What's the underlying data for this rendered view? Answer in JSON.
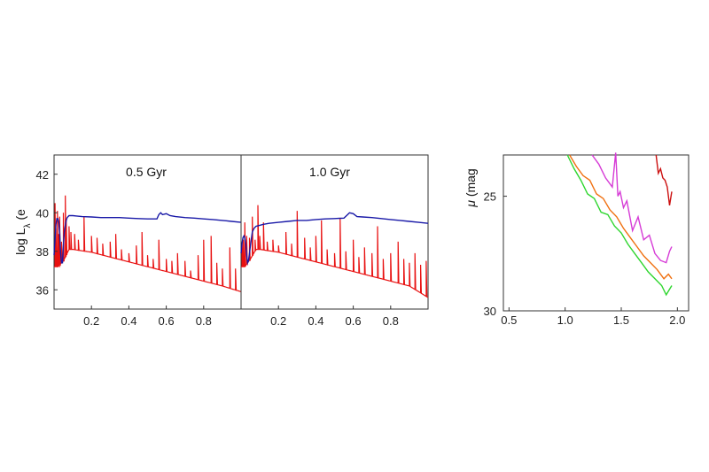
{
  "chart_data": [
    {
      "type": "line",
      "panel_title": "0.5 Gyr",
      "ylabel": "log L",
      "ylabel_subscript": "λ",
      "ylabel_unit_fragment": "(e",
      "xlim": [
        0.0,
        1.0
      ],
      "ylim": [
        35,
        43
      ],
      "yticks": [
        36,
        38,
        40,
        42
      ],
      "xtick_labels": [
        "0.2",
        "0.4",
        "0.6",
        "0.8"
      ],
      "series": [
        {
          "color": "#1a1aa8",
          "x": [
            0.0,
            0.005,
            0.01,
            0.015,
            0.02,
            0.025,
            0.03,
            0.035,
            0.04,
            0.045,
            0.05,
            0.055,
            0.06,
            0.065,
            0.07,
            0.08,
            0.09,
            0.1,
            0.12,
            0.15,
            0.2,
            0.25,
            0.3,
            0.35,
            0.4,
            0.45,
            0.5,
            0.55,
            0.56,
            0.57,
            0.58,
            0.6,
            0.62,
            0.65,
            0.7,
            0.75,
            0.8,
            0.85,
            0.9,
            0.95,
            1.0
          ],
          "y": [
            37.8,
            38.6,
            39.4,
            39.7,
            39.7,
            39.5,
            39.0,
            37.9,
            37.4,
            37.4,
            38.3,
            39.0,
            39.35,
            39.6,
            39.75,
            39.85,
            39.85,
            39.85,
            39.83,
            39.8,
            39.78,
            39.75,
            39.75,
            39.75,
            39.72,
            39.7,
            39.68,
            39.68,
            39.9,
            40.0,
            39.9,
            39.95,
            39.85,
            39.8,
            39.75,
            39.72,
            39.68,
            39.65,
            39.6,
            39.55,
            39.5
          ]
        },
        {
          "color": "#e81010",
          "continuum_x": [
            0.0,
            0.02,
            0.05,
            0.08,
            0.1,
            0.2,
            0.3,
            0.4,
            0.5,
            0.6,
            0.7,
            0.8,
            0.9,
            1.0
          ],
          "continuum_y": [
            37.2,
            37.2,
            37.5,
            38.1,
            38.1,
            37.95,
            37.7,
            37.45,
            37.2,
            36.95,
            36.7,
            36.45,
            36.2,
            35.9
          ],
          "spikes_x": [
            0.005,
            0.01,
            0.018,
            0.025,
            0.03,
            0.04,
            0.05,
            0.06,
            0.065,
            0.08,
            0.09,
            0.11,
            0.13,
            0.16,
            0.2,
            0.23,
            0.26,
            0.3,
            0.33,
            0.36,
            0.4,
            0.44,
            0.47,
            0.5,
            0.53,
            0.56,
            0.6,
            0.63,
            0.66,
            0.7,
            0.73,
            0.77,
            0.8,
            0.84,
            0.87,
            0.9,
            0.94,
            0.97
          ],
          "spikes_y": [
            40.5,
            39.2,
            40.1,
            38.9,
            39.8,
            38.5,
            40.0,
            40.9,
            39.6,
            39.3,
            39.0,
            38.9,
            38.6,
            39.8,
            38.8,
            38.7,
            38.4,
            38.5,
            38.9,
            38.1,
            37.9,
            38.3,
            39.0,
            37.8,
            37.6,
            38.6,
            37.6,
            37.5,
            37.9,
            37.5,
            37.0,
            37.8,
            38.6,
            38.8,
            37.4,
            37.1,
            38.2,
            37.1
          ]
        }
      ]
    },
    {
      "type": "line",
      "panel_title": "1.0 Gyr",
      "xlim": [
        0.0,
        1.0
      ],
      "ylim": [
        35,
        43
      ],
      "xtick_labels": [
        "0.2",
        "0.4",
        "0.6",
        "0.8"
      ],
      "series": [
        {
          "color": "#1a1aa8",
          "x": [
            0.0,
            0.005,
            0.01,
            0.015,
            0.02,
            0.025,
            0.03,
            0.035,
            0.04,
            0.05,
            0.06,
            0.07,
            0.08,
            0.1,
            0.12,
            0.15,
            0.2,
            0.25,
            0.3,
            0.35,
            0.4,
            0.45,
            0.5,
            0.55,
            0.58,
            0.6,
            0.62,
            0.65,
            0.7,
            0.75,
            0.8,
            0.85,
            0.9,
            0.95,
            1.0
          ],
          "y": [
            37.9,
            38.4,
            38.7,
            38.8,
            38.7,
            38.4,
            37.8,
            37.4,
            37.5,
            38.3,
            39.0,
            39.2,
            39.3,
            39.35,
            39.4,
            39.45,
            39.5,
            39.55,
            39.6,
            39.6,
            39.65,
            39.68,
            39.7,
            39.72,
            40.0,
            39.95,
            39.8,
            39.78,
            39.75,
            39.7,
            39.65,
            39.6,
            39.55,
            39.5,
            39.45
          ]
        },
        {
          "color": "#e81010",
          "continuum_x": [
            0.0,
            0.02,
            0.05,
            0.08,
            0.1,
            0.2,
            0.3,
            0.4,
            0.5,
            0.6,
            0.7,
            0.8,
            0.9,
            1.0
          ],
          "continuum_y": [
            37.2,
            37.2,
            37.6,
            38.1,
            38.1,
            37.95,
            37.7,
            37.45,
            37.2,
            36.95,
            36.7,
            36.45,
            36.2,
            35.6
          ],
          "spikes_x": [
            0.005,
            0.012,
            0.02,
            0.03,
            0.045,
            0.06,
            0.075,
            0.09,
            0.1,
            0.12,
            0.14,
            0.17,
            0.2,
            0.24,
            0.27,
            0.3,
            0.34,
            0.37,
            0.4,
            0.43,
            0.46,
            0.5,
            0.53,
            0.56,
            0.6,
            0.63,
            0.66,
            0.7,
            0.73,
            0.76,
            0.8,
            0.84,
            0.87,
            0.9,
            0.93,
            0.96,
            0.99
          ],
          "spikes_y": [
            38.4,
            38.6,
            39.5,
            38.8,
            38.7,
            39.8,
            38.6,
            40.4,
            38.8,
            39.5,
            38.5,
            38.6,
            38.3,
            39.0,
            38.4,
            40.1,
            38.7,
            38.2,
            38.8,
            39.6,
            38.1,
            37.9,
            39.7,
            38.0,
            38.6,
            37.7,
            38.2,
            37.9,
            39.3,
            37.6,
            37.9,
            38.5,
            37.6,
            37.4,
            37.9,
            37.3,
            37.5
          ]
        }
      ]
    },
    {
      "type": "line",
      "ylabel": "μ (mag",
      "ylabel_symbol": "μ",
      "ylabel_rest": " (mag",
      "ylim_inverted": [
        23.2,
        30
      ],
      "yticks": [
        25,
        30
      ],
      "xlim": [
        0.45,
        2.1
      ],
      "xtick_labels": [
        "0.5",
        "1.0",
        "1.5",
        "2.0"
      ],
      "xtick_values": [
        0.5,
        1.0,
        1.5,
        2.0
      ],
      "series": [
        {
          "color": "#cc1010",
          "x": [
            1.81,
            1.83,
            1.85,
            1.87,
            1.89,
            1.91,
            1.93,
            1.95
          ],
          "y": [
            23.2,
            24.0,
            23.8,
            24.2,
            24.3,
            24.6,
            25.4,
            24.8
          ]
        },
        {
          "color": "#d63bd6",
          "x": [
            1.24,
            1.3,
            1.36,
            1.42,
            1.45,
            1.47,
            1.49,
            1.52,
            1.55,
            1.6,
            1.65,
            1.7,
            1.75,
            1.8,
            1.85,
            1.9,
            1.93,
            1.95
          ],
          "y": [
            23.2,
            23.6,
            24.2,
            24.6,
            23.1,
            25.0,
            24.8,
            25.5,
            25.2,
            26.5,
            25.9,
            26.9,
            26.7,
            27.5,
            27.8,
            27.9,
            27.4,
            27.2
          ]
        },
        {
          "color": "#f07010",
          "x": [
            1.04,
            1.1,
            1.16,
            1.22,
            1.28,
            1.34,
            1.4,
            1.46,
            1.52,
            1.58,
            1.64,
            1.7,
            1.76,
            1.82,
            1.88,
            1.92,
            1.95
          ],
          "y": [
            23.2,
            23.7,
            24.1,
            24.3,
            24.9,
            25.1,
            25.6,
            25.9,
            26.4,
            26.8,
            27.2,
            27.6,
            27.9,
            28.2,
            28.6,
            28.4,
            28.6
          ]
        },
        {
          "color": "#2ed62e",
          "x": [
            1.02,
            1.08,
            1.14,
            1.2,
            1.26,
            1.32,
            1.38,
            1.44,
            1.5,
            1.56,
            1.62,
            1.68,
            1.74,
            1.8,
            1.86,
            1.9,
            1.95
          ],
          "y": [
            23.2,
            23.8,
            24.3,
            24.9,
            25.1,
            25.7,
            25.8,
            26.3,
            26.6,
            27.1,
            27.5,
            27.9,
            28.3,
            28.6,
            28.9,
            29.3,
            28.9
          ]
        }
      ]
    }
  ]
}
